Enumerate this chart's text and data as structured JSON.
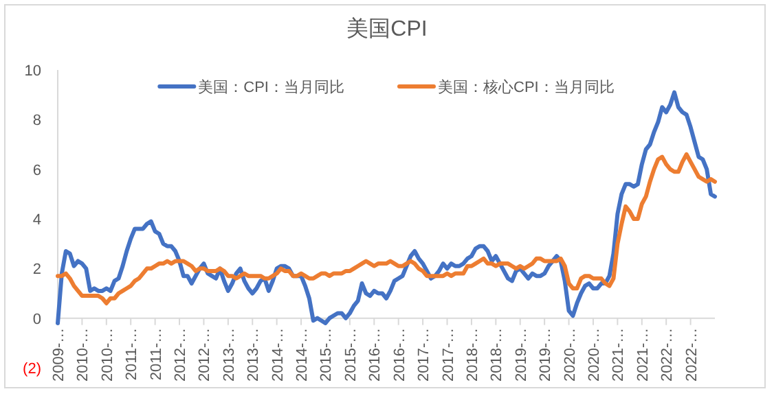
{
  "chart_data": {
    "type": "line",
    "title": "美国CPI",
    "categories": [
      "2009-…",
      null,
      null,
      null,
      null,
      null,
      "2010-…",
      null,
      null,
      null,
      null,
      null,
      "2010-…",
      null,
      null,
      null,
      null,
      null,
      "2011-…",
      null,
      null,
      null,
      null,
      null,
      "2011-…",
      null,
      null,
      null,
      null,
      null,
      "2012-…",
      null,
      null,
      null,
      null,
      null,
      "2012-…",
      null,
      null,
      null,
      null,
      null,
      "2013-…",
      null,
      null,
      null,
      null,
      null,
      "2013-…",
      null,
      null,
      null,
      null,
      null,
      "2014-…",
      null,
      null,
      null,
      null,
      null,
      "2014-…",
      null,
      null,
      null,
      null,
      null,
      "2015-…",
      null,
      null,
      null,
      null,
      null,
      "2015-…",
      null,
      null,
      null,
      null,
      null,
      "2016-…",
      null,
      null,
      null,
      null,
      null,
      "2016-…",
      null,
      null,
      null,
      null,
      null,
      "2017-…",
      null,
      null,
      null,
      null,
      null,
      "2017-…",
      null,
      null,
      null,
      null,
      null,
      "2018-…",
      null,
      null,
      null,
      null,
      null,
      "2018-…",
      null,
      null,
      null,
      null,
      null,
      "2019-…",
      null,
      null,
      null,
      null,
      null,
      "2019-…",
      null,
      null,
      null,
      null,
      null,
      "2020-…",
      null,
      null,
      null,
      null,
      null,
      "2020-…",
      null,
      null,
      null,
      null,
      null,
      "2021-…",
      null,
      null,
      null,
      null,
      null,
      "2021-…",
      null,
      null,
      null,
      null,
      null,
      "2022-…",
      null,
      null,
      null,
      null,
      null,
      "2022-…",
      null,
      null,
      null,
      null,
      null,
      null
    ],
    "series": [
      {
        "name": "美国：CPI：当月同比",
        "color": "#4472c4",
        "values": [
          -0.2,
          1.8,
          2.7,
          2.6,
          2.1,
          2.3,
          2.2,
          2.0,
          1.1,
          1.2,
          1.1,
          1.1,
          1.2,
          1.1,
          1.5,
          1.6,
          2.1,
          2.7,
          3.2,
          3.6,
          3.6,
          3.6,
          3.8,
          3.9,
          3.5,
          3.4,
          3.0,
          2.9,
          2.9,
          2.7,
          2.3,
          1.7,
          1.7,
          1.4,
          1.7,
          2.0,
          2.2,
          1.8,
          1.7,
          1.6,
          2.0,
          1.5,
          1.1,
          1.4,
          1.8,
          2.0,
          1.5,
          1.2,
          1.0,
          1.2,
          1.5,
          1.6,
          1.1,
          1.5,
          2.0,
          2.1,
          2.1,
          2.0,
          1.7,
          1.7,
          1.7,
          1.3,
          0.8,
          -0.1,
          0.0,
          -0.1,
          -0.2,
          0.0,
          0.1,
          0.2,
          0.2,
          0.0,
          0.2,
          0.5,
          0.7,
          1.4,
          1.0,
          0.9,
          1.1,
          1.0,
          1.0,
          0.8,
          1.1,
          1.5,
          1.6,
          1.7,
          2.1,
          2.5,
          2.7,
          2.4,
          2.2,
          1.9,
          1.6,
          1.7,
          1.9,
          2.2,
          2.0,
          2.2,
          2.1,
          2.1,
          2.2,
          2.4,
          2.5,
          2.8,
          2.9,
          2.9,
          2.7,
          2.3,
          2.5,
          2.2,
          1.9,
          1.6,
          1.5,
          1.9,
          2.0,
          1.8,
          1.6,
          1.8,
          1.7,
          1.7,
          1.8,
          2.1,
          2.3,
          2.5,
          2.3,
          1.5,
          0.3,
          0.1,
          0.6,
          1.0,
          1.3,
          1.4,
          1.2,
          1.2,
          1.4,
          1.4,
          1.7,
          2.6,
          4.2,
          5.0,
          5.4,
          5.4,
          5.3,
          5.4,
          6.2,
          6.8,
          7.0,
          7.5,
          7.9,
          8.5,
          8.3,
          8.6,
          9.1,
          8.5,
          8.3,
          8.2,
          7.7,
          7.1,
          6.5,
          6.4,
          6.0,
          5.0,
          4.9
        ]
      },
      {
        "name": "美国：核心CPI：当月同比",
        "color": "#ed7d31",
        "values": [
          1.7,
          1.7,
          1.8,
          1.6,
          1.3,
          1.1,
          0.9,
          0.9,
          0.9,
          0.9,
          0.9,
          0.8,
          0.6,
          0.8,
          0.8,
          1.0,
          1.1,
          1.2,
          1.3,
          1.5,
          1.6,
          1.8,
          2.0,
          2.0,
          2.1,
          2.2,
          2.2,
          2.3,
          2.2,
          2.3,
          2.3,
          2.3,
          2.2,
          2.1,
          1.9,
          2.0,
          2.0,
          1.9,
          1.9,
          1.9,
          2.0,
          1.9,
          1.7,
          1.7,
          1.6,
          1.7,
          1.8,
          1.7,
          1.7,
          1.7,
          1.7,
          1.6,
          1.6,
          1.7,
          1.8,
          2.0,
          1.9,
          1.9,
          1.7,
          1.7,
          1.8,
          1.7,
          1.6,
          1.6,
          1.7,
          1.8,
          1.8,
          1.7,
          1.8,
          1.8,
          1.8,
          1.9,
          1.9,
          2.0,
          2.1,
          2.2,
          2.3,
          2.2,
          2.1,
          2.2,
          2.2,
          2.2,
          2.3,
          2.2,
          2.1,
          2.1,
          2.2,
          2.3,
          2.2,
          2.0,
          1.9,
          1.7,
          1.7,
          1.7,
          1.7,
          1.7,
          1.8,
          1.7,
          1.8,
          1.8,
          1.8,
          2.1,
          2.1,
          2.2,
          2.3,
          2.4,
          2.2,
          2.2,
          2.1,
          2.2,
          2.2,
          2.2,
          2.1,
          2.0,
          2.1,
          2.0,
          2.1,
          2.2,
          2.4,
          2.4,
          2.3,
          2.3,
          2.3,
          2.3,
          2.4,
          2.1,
          1.4,
          1.2,
          1.2,
          1.6,
          1.7,
          1.7,
          1.6,
          1.6,
          1.6,
          1.4,
          1.3,
          1.6,
          3.0,
          3.8,
          4.5,
          4.3,
          4.0,
          4.0,
          4.6,
          4.9,
          5.5,
          6.0,
          6.4,
          6.5,
          6.2,
          6.0,
          5.9,
          5.9,
          6.3,
          6.6,
          6.3,
          6.0,
          5.7,
          5.6,
          5.5,
          5.6,
          5.5
        ]
      }
    ],
    "ylim": [
      -2,
      10
    ],
    "yticks": [
      {
        "value": -2,
        "label": "(2)"
      },
      0,
      2,
      4,
      6,
      8,
      10
    ],
    "legend": "top"
  }
}
